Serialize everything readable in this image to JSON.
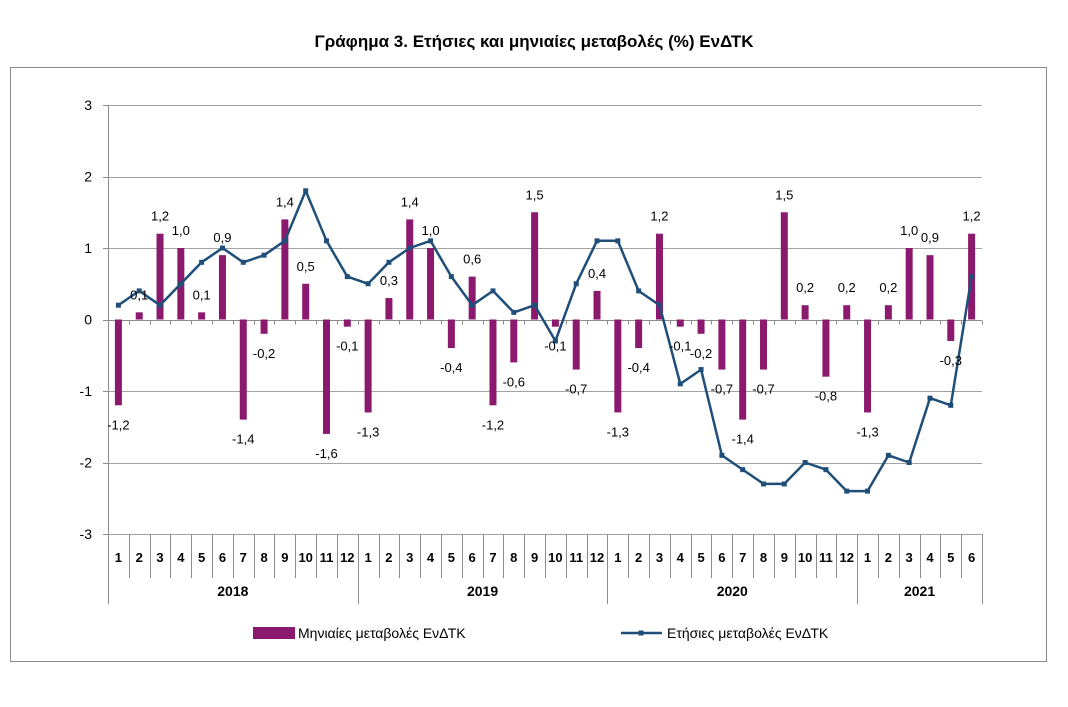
{
  "chart_data": {
    "type": "bar",
    "title": "Γράφημα 3. Ετήσιες και μηνιαίες μεταβολές (%) ΕνΔΤΚ",
    "categories": [
      "1",
      "2",
      "3",
      "4",
      "5",
      "6",
      "7",
      "8",
      "9",
      "10",
      "11",
      "12",
      "1",
      "2",
      "3",
      "4",
      "5",
      "6",
      "7",
      "8",
      "9",
      "10",
      "11",
      "12",
      "1",
      "2",
      "3",
      "4",
      "5",
      "6",
      "7",
      "8",
      "9",
      "10",
      "11",
      "12",
      "1",
      "2",
      "3",
      "4",
      "5",
      "6"
    ],
    "groups": [
      {
        "label": "2018",
        "count": 12
      },
      {
        "label": "2019",
        "count": 12
      },
      {
        "label": "2020",
        "count": 12
      },
      {
        "label": "2021",
        "count": 6
      }
    ],
    "series": [
      {
        "name": "Μηνιαίες μεταβολές ΕνΔΤΚ",
        "type": "bar",
        "color": "#8B1A6E",
        "values": [
          -1.2,
          0.1,
          1.2,
          1.0,
          0.1,
          0.9,
          -1.4,
          -0.2,
          1.4,
          0.5,
          -1.6,
          -0.1,
          -1.3,
          0.3,
          1.4,
          1.0,
          -0.4,
          0.6,
          -1.2,
          -0.6,
          1.5,
          -0.1,
          -0.7,
          0.4,
          -1.3,
          -0.4,
          1.2,
          -0.1,
          -0.2,
          -0.7,
          -1.4,
          -0.7,
          1.5,
          0.2,
          -0.8,
          0.2,
          -1.3,
          0.2,
          1.0,
          0.9,
          -0.3,
          1.2
        ],
        "labels": [
          "-1,2",
          "0,1",
          "1,2",
          "1,0",
          "0,1",
          "0,9",
          "-1,4",
          "-0,2",
          "1,4",
          "0,5",
          "-1,6",
          "-0,1",
          "-1,3",
          "0,3",
          "1,4",
          "1,0",
          "-0,4",
          "0,6",
          "-1,2",
          "-0,6",
          "1,5",
          "-0,1",
          "-0,7",
          "0,4",
          "-1,3",
          "-0,4",
          "1,2",
          "-0,1",
          "-0,2",
          "-0,7",
          "-1,4",
          "-0,7",
          "1,5",
          "0,2",
          "-0,8",
          "0,2",
          "-1,3",
          "0,2",
          "1,0",
          "0,9",
          "-0,3",
          "1,2"
        ]
      },
      {
        "name": "Ετήσιες μεταβολές ΕνΔΤΚ",
        "type": "line",
        "color": "#1F4E79",
        "marker": "square",
        "values": [
          0.2,
          0.4,
          0.2,
          0.5,
          0.8,
          1.0,
          0.8,
          0.9,
          1.1,
          1.8,
          1.1,
          0.6,
          0.5,
          0.8,
          1.0,
          1.1,
          0.6,
          0.2,
          0.4,
          0.1,
          0.2,
          -0.3,
          0.5,
          1.1,
          1.1,
          0.4,
          0.2,
          -0.9,
          -0.7,
          -1.9,
          -2.1,
          -2.3,
          -2.3,
          -2.0,
          -2.1,
          -2.4,
          -2.4,
          -1.9,
          -2.0,
          -1.1,
          -1.2,
          0.6
        ]
      }
    ],
    "ylim": [
      -3,
      3
    ],
    "yticks": [
      3,
      2,
      1,
      0,
      -1,
      -2,
      -3
    ],
    "grid": true,
    "legend": "bottom"
  }
}
